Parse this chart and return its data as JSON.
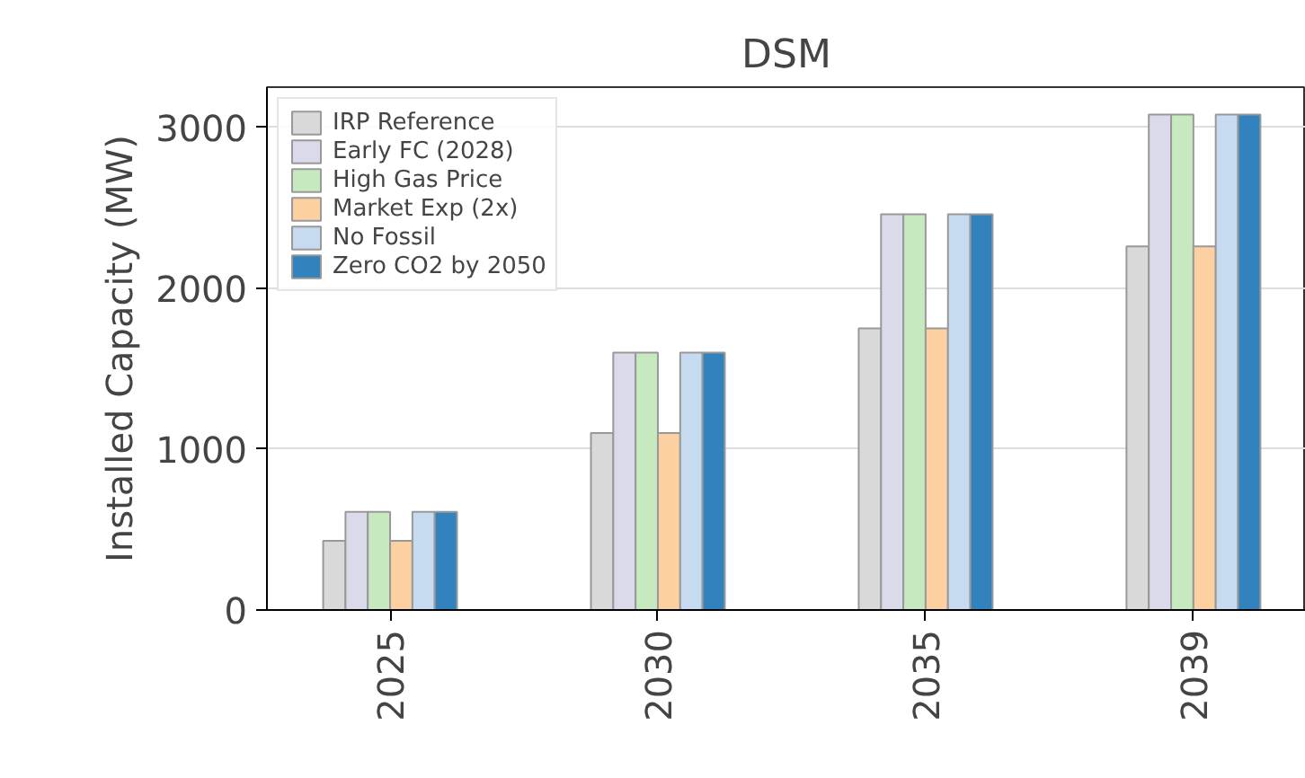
{
  "chart_data": {
    "type": "bar",
    "title": "DSM",
    "ylabel": "Installed Capacity (MW)",
    "categories": [
      "2025",
      "2030",
      "2035",
      "2039"
    ],
    "series": [
      {
        "name": "IRP Reference",
        "color": "#d9d9d9",
        "values": [
          430,
          1100,
          1750,
          2260
        ]
      },
      {
        "name": "Early FC (2028)",
        "color": "#dadaeb",
        "values": [
          610,
          1600,
          2460,
          3080
        ]
      },
      {
        "name": "High Gas Price",
        "color": "#c7e9c0",
        "values": [
          610,
          1600,
          2460,
          3080
        ]
      },
      {
        "name": "Market Exp (2x)",
        "color": "#fdd0a2",
        "values": [
          430,
          1100,
          1750,
          2260
        ]
      },
      {
        "name": "No Fossil",
        "color": "#c6dbef",
        "values": [
          610,
          1600,
          2460,
          3080
        ]
      },
      {
        "name": "Zero CO2 by 2050",
        "color": "#3182bd",
        "values": [
          610,
          1600,
          2460,
          3080
        ]
      }
    ],
    "ylim": [
      0,
      3250
    ],
    "yticks": [
      0,
      1000,
      2000,
      3000
    ],
    "grid": "y",
    "legend": "top left"
  }
}
